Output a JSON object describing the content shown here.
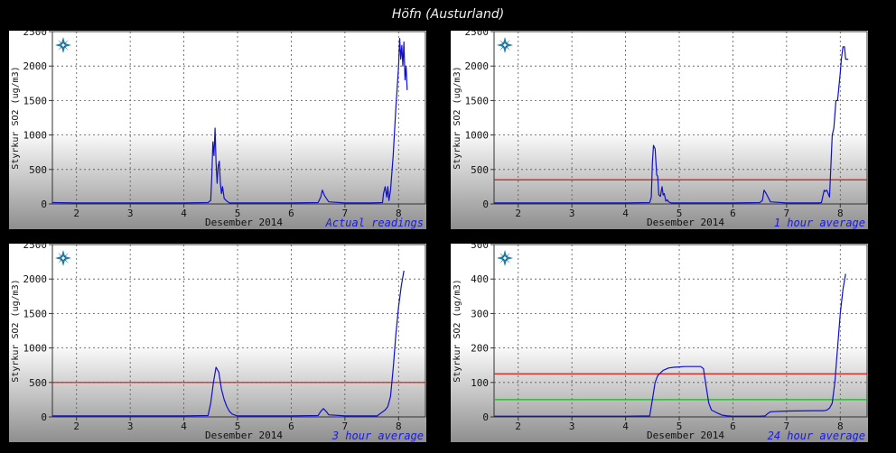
{
  "page": {
    "title": "Höfn (Austurland)"
  },
  "colors": {
    "series": "#1010c8",
    "limit_red": "#e01010",
    "limit_green": "#10c010",
    "caption": "#1a1ae0"
  },
  "chart_data": [
    {
      "type": "line",
      "caption": "Actual readings",
      "xlabel": "Desember 2014",
      "ylabel": "Styrkur SO2 (ug/m3)",
      "xlim": [
        1.55,
        8.5
      ],
      "ylim": [
        0,
        2500
      ],
      "yticks": [
        0,
        500,
        1000,
        1500,
        2000,
        2500
      ],
      "xticks": [
        2,
        3,
        4,
        5,
        6,
        7,
        8
      ],
      "grid": true,
      "thresholds": [],
      "series": [
        {
          "x": [
            1.55,
            2.0,
            3.0,
            4.0,
            4.45,
            4.5,
            4.52,
            4.54,
            4.56,
            4.58,
            4.6,
            4.62,
            4.64,
            4.66,
            4.68,
            4.7,
            4.72,
            4.75,
            4.8,
            4.85,
            5.0,
            6.0,
            6.5,
            6.55,
            6.58,
            6.62,
            6.7,
            7.0,
            7.5,
            7.7,
            7.72,
            7.75,
            7.78,
            7.8,
            7.82,
            7.85,
            7.9,
            7.95,
            8.0,
            8.02,
            8.04,
            8.06,
            8.08,
            8.1,
            8.12,
            8.14,
            8.16
          ],
          "y": [
            20,
            15,
            15,
            15,
            20,
            50,
            400,
            900,
            700,
            1100,
            600,
            300,
            550,
            620,
            300,
            150,
            250,
            80,
            40,
            15,
            15,
            15,
            20,
            100,
            200,
            120,
            30,
            15,
            15,
            20,
            150,
            250,
            100,
            250,
            50,
            200,
            700,
            1400,
            2000,
            2400,
            2100,
            2300,
            2000,
            2350,
            1800,
            2000,
            1650
          ]
        }
      ]
    },
    {
      "type": "line",
      "caption": "1 hour average",
      "xlabel": "Desember 2014",
      "ylabel": "Styrkur SO2 (ug/m3)",
      "xlim": [
        1.55,
        8.5
      ],
      "ylim": [
        0,
        2500
      ],
      "yticks": [
        0,
        500,
        1000,
        1500,
        2000,
        2500
      ],
      "xticks": [
        2,
        3,
        4,
        5,
        6,
        7,
        8
      ],
      "grid": true,
      "thresholds": [
        {
          "value": 350,
          "color": "red"
        }
      ],
      "series": [
        {
          "x": [
            1.55,
            2.0,
            3.0,
            4.0,
            4.45,
            4.48,
            4.5,
            4.52,
            4.55,
            4.58,
            4.6,
            4.62,
            4.65,
            4.68,
            4.7,
            4.72,
            4.75,
            4.78,
            4.8,
            4.85,
            5.0,
            6.0,
            6.5,
            6.55,
            6.58,
            6.62,
            6.7,
            7.0,
            7.6,
            7.65,
            7.7,
            7.72,
            7.75,
            7.8,
            7.85,
            7.88,
            7.92,
            7.95,
            8.0,
            8.02,
            8.05,
            8.08,
            8.1,
            8.15
          ],
          "y": [
            15,
            15,
            15,
            15,
            20,
            100,
            600,
            850,
            800,
            420,
            400,
            130,
            110,
            250,
            130,
            150,
            40,
            60,
            30,
            15,
            15,
            15,
            20,
            50,
            200,
            150,
            30,
            15,
            15,
            20,
            200,
            180,
            200,
            100,
            1000,
            1100,
            1500,
            1500,
            1900,
            2100,
            2280,
            2280,
            2100,
            2100
          ]
        }
      ]
    },
    {
      "type": "line",
      "caption": "3 hour average",
      "xlabel": "Desember 2014",
      "ylabel": "Styrkur SO2 (ug/m3)",
      "xlim": [
        1.55,
        8.5
      ],
      "ylim": [
        0,
        2500
      ],
      "yticks": [
        0,
        500,
        1000,
        1500,
        2000,
        2500
      ],
      "xticks": [
        2,
        3,
        4,
        5,
        6,
        7,
        8
      ],
      "grid": true,
      "thresholds": [
        {
          "value": 500,
          "color": "red"
        }
      ],
      "series": [
        {
          "x": [
            1.55,
            2.0,
            3.0,
            4.0,
            4.45,
            4.5,
            4.55,
            4.6,
            4.65,
            4.7,
            4.75,
            4.8,
            4.85,
            4.9,
            5.0,
            6.0,
            6.5,
            6.55,
            6.6,
            6.65,
            6.7,
            7.0,
            7.6,
            7.75,
            7.8,
            7.85,
            7.9,
            7.95,
            8.0,
            8.05,
            8.1
          ],
          "y": [
            15,
            15,
            15,
            15,
            20,
            200,
            500,
            720,
            650,
            400,
            250,
            150,
            80,
            40,
            15,
            15,
            20,
            80,
            120,
            80,
            30,
            15,
            15,
            100,
            150,
            300,
            700,
            1200,
            1600,
            1900,
            2120
          ]
        }
      ]
    },
    {
      "type": "line",
      "caption": "24 hour average",
      "xlabel": "Desember 2014",
      "ylabel": "Styrkur SO2 (ug/m3)",
      "xlim": [
        1.55,
        8.5
      ],
      "ylim": [
        0,
        500
      ],
      "yticks": [
        0,
        100,
        200,
        300,
        400,
        500
      ],
      "xticks": [
        2,
        3,
        4,
        5,
        6,
        7,
        8
      ],
      "grid": true,
      "thresholds": [
        {
          "value": 125,
          "color": "red"
        },
        {
          "value": 50,
          "color": "green"
        }
      ],
      "series": [
        {
          "x": [
            1.55,
            2.0,
            3.0,
            4.0,
            4.45,
            4.5,
            4.55,
            4.6,
            4.7,
            4.8,
            4.9,
            5.0,
            5.1,
            5.2,
            5.3,
            5.4,
            5.45,
            5.5,
            5.55,
            5.6,
            5.7,
            5.8,
            5.9,
            6.0,
            6.5,
            6.6,
            6.65,
            6.7,
            7.0,
            7.5,
            7.7,
            7.75,
            7.8,
            7.85,
            7.9,
            7.95,
            8.0,
            8.05,
            8.1
          ],
          "y": [
            2,
            2,
            2,
            2,
            3,
            50,
            100,
            120,
            135,
            142,
            144,
            145,
            146,
            146,
            146,
            146,
            140,
            90,
            40,
            20,
            12,
            5,
            3,
            2,
            2,
            3,
            10,
            15,
            17,
            18,
            18,
            20,
            25,
            40,
            100,
            200,
            300,
            370,
            415
          ]
        }
      ]
    }
  ]
}
